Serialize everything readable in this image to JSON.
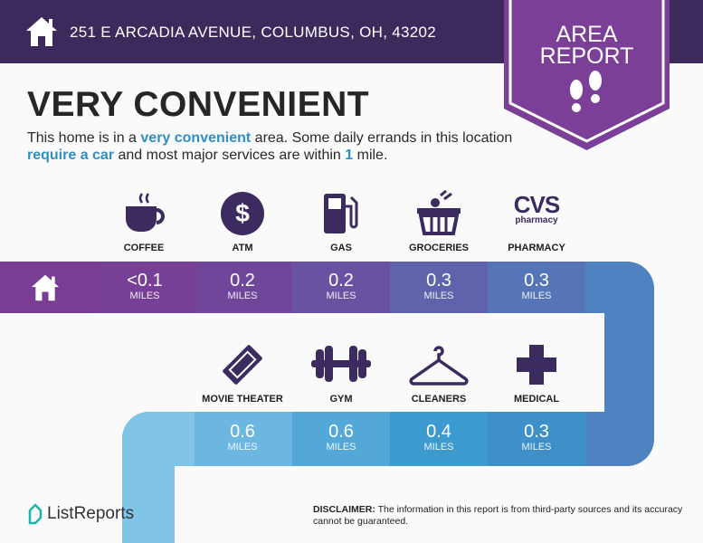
{
  "header": {
    "address": "251 E ARCADIA AVENUE, COLUMBUS, OH, 43202",
    "badge_line1": "AREA",
    "badge_line2": "REPORT"
  },
  "summary": {
    "title": "VERY CONVENIENT",
    "text_1": "This home is in a ",
    "hl_1": "very convenient",
    "text_2": " area. Some daily errands in this location ",
    "hl_2": "require a car",
    "text_3": " and most major services are within ",
    "hl_3": "1",
    "text_4": " mile."
  },
  "top_row": [
    {
      "label": "COFFEE",
      "icon": "coffee-cup-icon",
      "value": "<0.1",
      "unit": "MILES"
    },
    {
      "label": "ATM",
      "icon": "dollar-icon",
      "value": "0.2",
      "unit": "MILES"
    },
    {
      "label": "GAS",
      "icon": "gas-pump-icon",
      "value": "0.2",
      "unit": "MILES"
    },
    {
      "label": "GROCERIES",
      "icon": "grocery-basket-icon",
      "value": "0.3",
      "unit": "MILES"
    },
    {
      "label": "PHARMACY",
      "icon": "cvs-pharmacy-logo",
      "logo_text": "CVS",
      "logo_sub": "pharmacy",
      "value": "0.3",
      "unit": "MILES"
    }
  ],
  "bottom_row": [
    {
      "label": "MOVIE THEATER",
      "icon": "ticket-icon",
      "value": "0.6",
      "unit": "MILES"
    },
    {
      "label": "GYM",
      "icon": "dumbbell-icon",
      "value": "0.6",
      "unit": "MILES"
    },
    {
      "label": "CLEANERS",
      "icon": "hanger-icon",
      "value": "0.4",
      "unit": "MILES"
    },
    {
      "label": "MEDICAL",
      "icon": "medical-cross-icon",
      "value": "0.3",
      "unit": "MILES"
    }
  ],
  "footer": {
    "brand": "ListReports",
    "disclaimer_label": "DISCLAIMER:",
    "disclaimer_text": " The information in this report is from third-party sources and its accuracy cannot be guaranteed."
  },
  "colors": {
    "header": "#3c2a5c",
    "badge": "#7b3f98",
    "icon": "#3b2b5e",
    "highlight": "#2f8fc4"
  }
}
